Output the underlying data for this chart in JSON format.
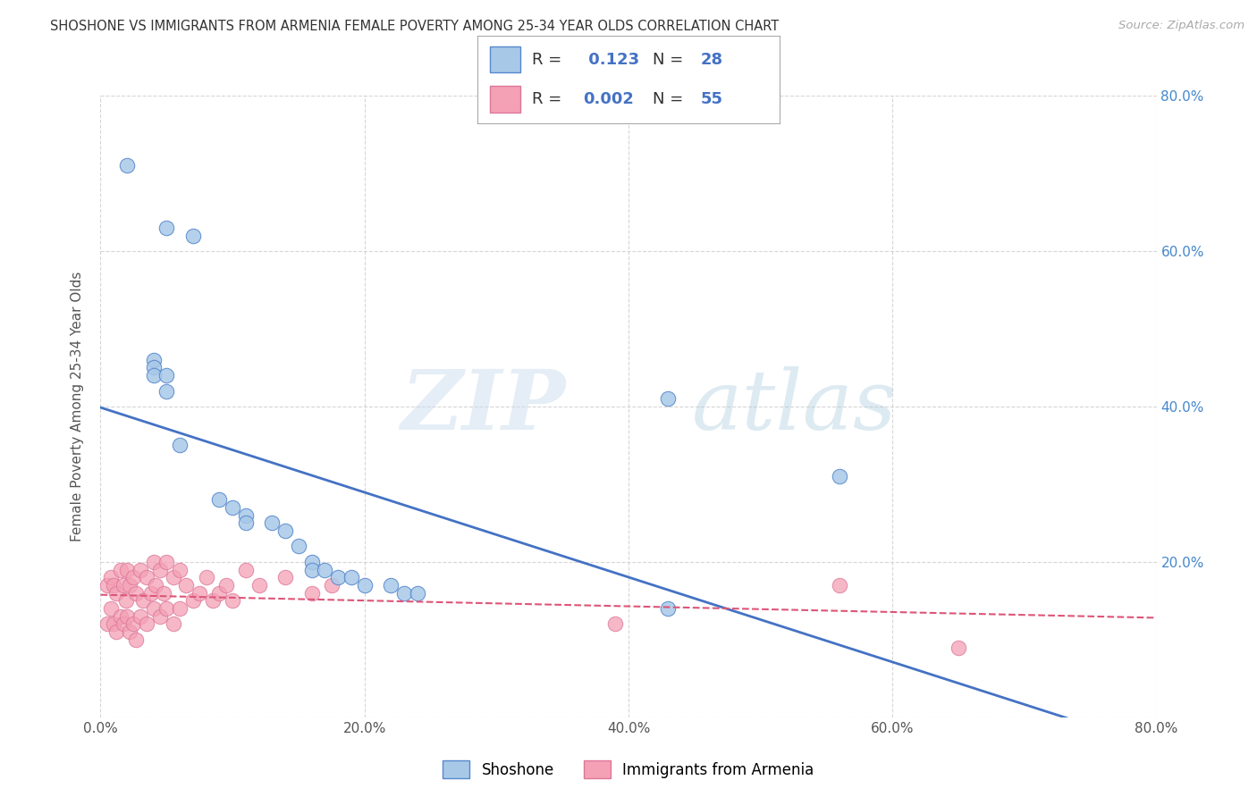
{
  "title": "SHOSHONE VS IMMIGRANTS FROM ARMENIA FEMALE POVERTY AMONG 25-34 YEAR OLDS CORRELATION CHART",
  "source": "Source: ZipAtlas.com",
  "ylabel": "Female Poverty Among 25-34 Year Olds",
  "xlim": [
    0.0,
    0.8
  ],
  "ylim": [
    0.0,
    0.8
  ],
  "xticks": [
    0.0,
    0.2,
    0.4,
    0.6,
    0.8
  ],
  "yticks": [
    0.0,
    0.2,
    0.4,
    0.6,
    0.8
  ],
  "xtick_labels": [
    "0.0%",
    "20.0%",
    "40.0%",
    "60.0%",
    "80.0%"
  ],
  "ytick_labels_right": [
    "",
    "20.0%",
    "40.0%",
    "60.0%",
    "80.0%"
  ],
  "shoshone_color": "#a8c8e8",
  "armenia_color": "#f4a0b5",
  "shoshone_edge_color": "#5588cc",
  "armenia_edge_color": "#dd7799",
  "shoshone_line_color": "#4472c4",
  "armenia_line_color": "#dd5577",
  "background_color": "#ffffff",
  "grid_color": "#cccccc",
  "legend_R_shoshone": "0.123",
  "legend_N_shoshone": "28",
  "legend_R_armenia": "0.002",
  "legend_N_armenia": "55",
  "watermark_zip": "ZIP",
  "watermark_atlas": "atlas",
  "shoshone_x": [
    0.02,
    0.05,
    0.07,
    0.04,
    0.04,
    0.04,
    0.05,
    0.05,
    0.06,
    0.09,
    0.1,
    0.11,
    0.11,
    0.13,
    0.14,
    0.15,
    0.16,
    0.16,
    0.17,
    0.18,
    0.19,
    0.2,
    0.22,
    0.23,
    0.24,
    0.43,
    0.56,
    0.43
  ],
  "shoshone_y": [
    0.71,
    0.63,
    0.62,
    0.46,
    0.45,
    0.44,
    0.44,
    0.42,
    0.35,
    0.28,
    0.27,
    0.26,
    0.25,
    0.25,
    0.24,
    0.22,
    0.2,
    0.19,
    0.19,
    0.18,
    0.18,
    0.17,
    0.17,
    0.16,
    0.16,
    0.41,
    0.31,
    0.14
  ],
  "armenia_x": [
    0.005,
    0.005,
    0.008,
    0.008,
    0.01,
    0.01,
    0.012,
    0.012,
    0.015,
    0.015,
    0.017,
    0.017,
    0.019,
    0.02,
    0.02,
    0.022,
    0.022,
    0.025,
    0.025,
    0.027,
    0.027,
    0.03,
    0.03,
    0.032,
    0.035,
    0.035,
    0.038,
    0.04,
    0.04,
    0.042,
    0.045,
    0.045,
    0.048,
    0.05,
    0.05,
    0.055,
    0.055,
    0.06,
    0.06,
    0.065,
    0.07,
    0.075,
    0.08,
    0.085,
    0.09,
    0.095,
    0.1,
    0.11,
    0.12,
    0.14,
    0.16,
    0.175,
    0.39,
    0.56,
    0.65
  ],
  "armenia_y": [
    0.17,
    0.12,
    0.18,
    0.14,
    0.17,
    0.12,
    0.16,
    0.11,
    0.19,
    0.13,
    0.17,
    0.12,
    0.15,
    0.19,
    0.13,
    0.17,
    0.11,
    0.18,
    0.12,
    0.16,
    0.1,
    0.19,
    0.13,
    0.15,
    0.18,
    0.12,
    0.16,
    0.2,
    0.14,
    0.17,
    0.19,
    0.13,
    0.16,
    0.2,
    0.14,
    0.18,
    0.12,
    0.19,
    0.14,
    0.17,
    0.15,
    0.16,
    0.18,
    0.15,
    0.16,
    0.17,
    0.15,
    0.19,
    0.17,
    0.18,
    0.16,
    0.17,
    0.12,
    0.17,
    0.09
  ]
}
